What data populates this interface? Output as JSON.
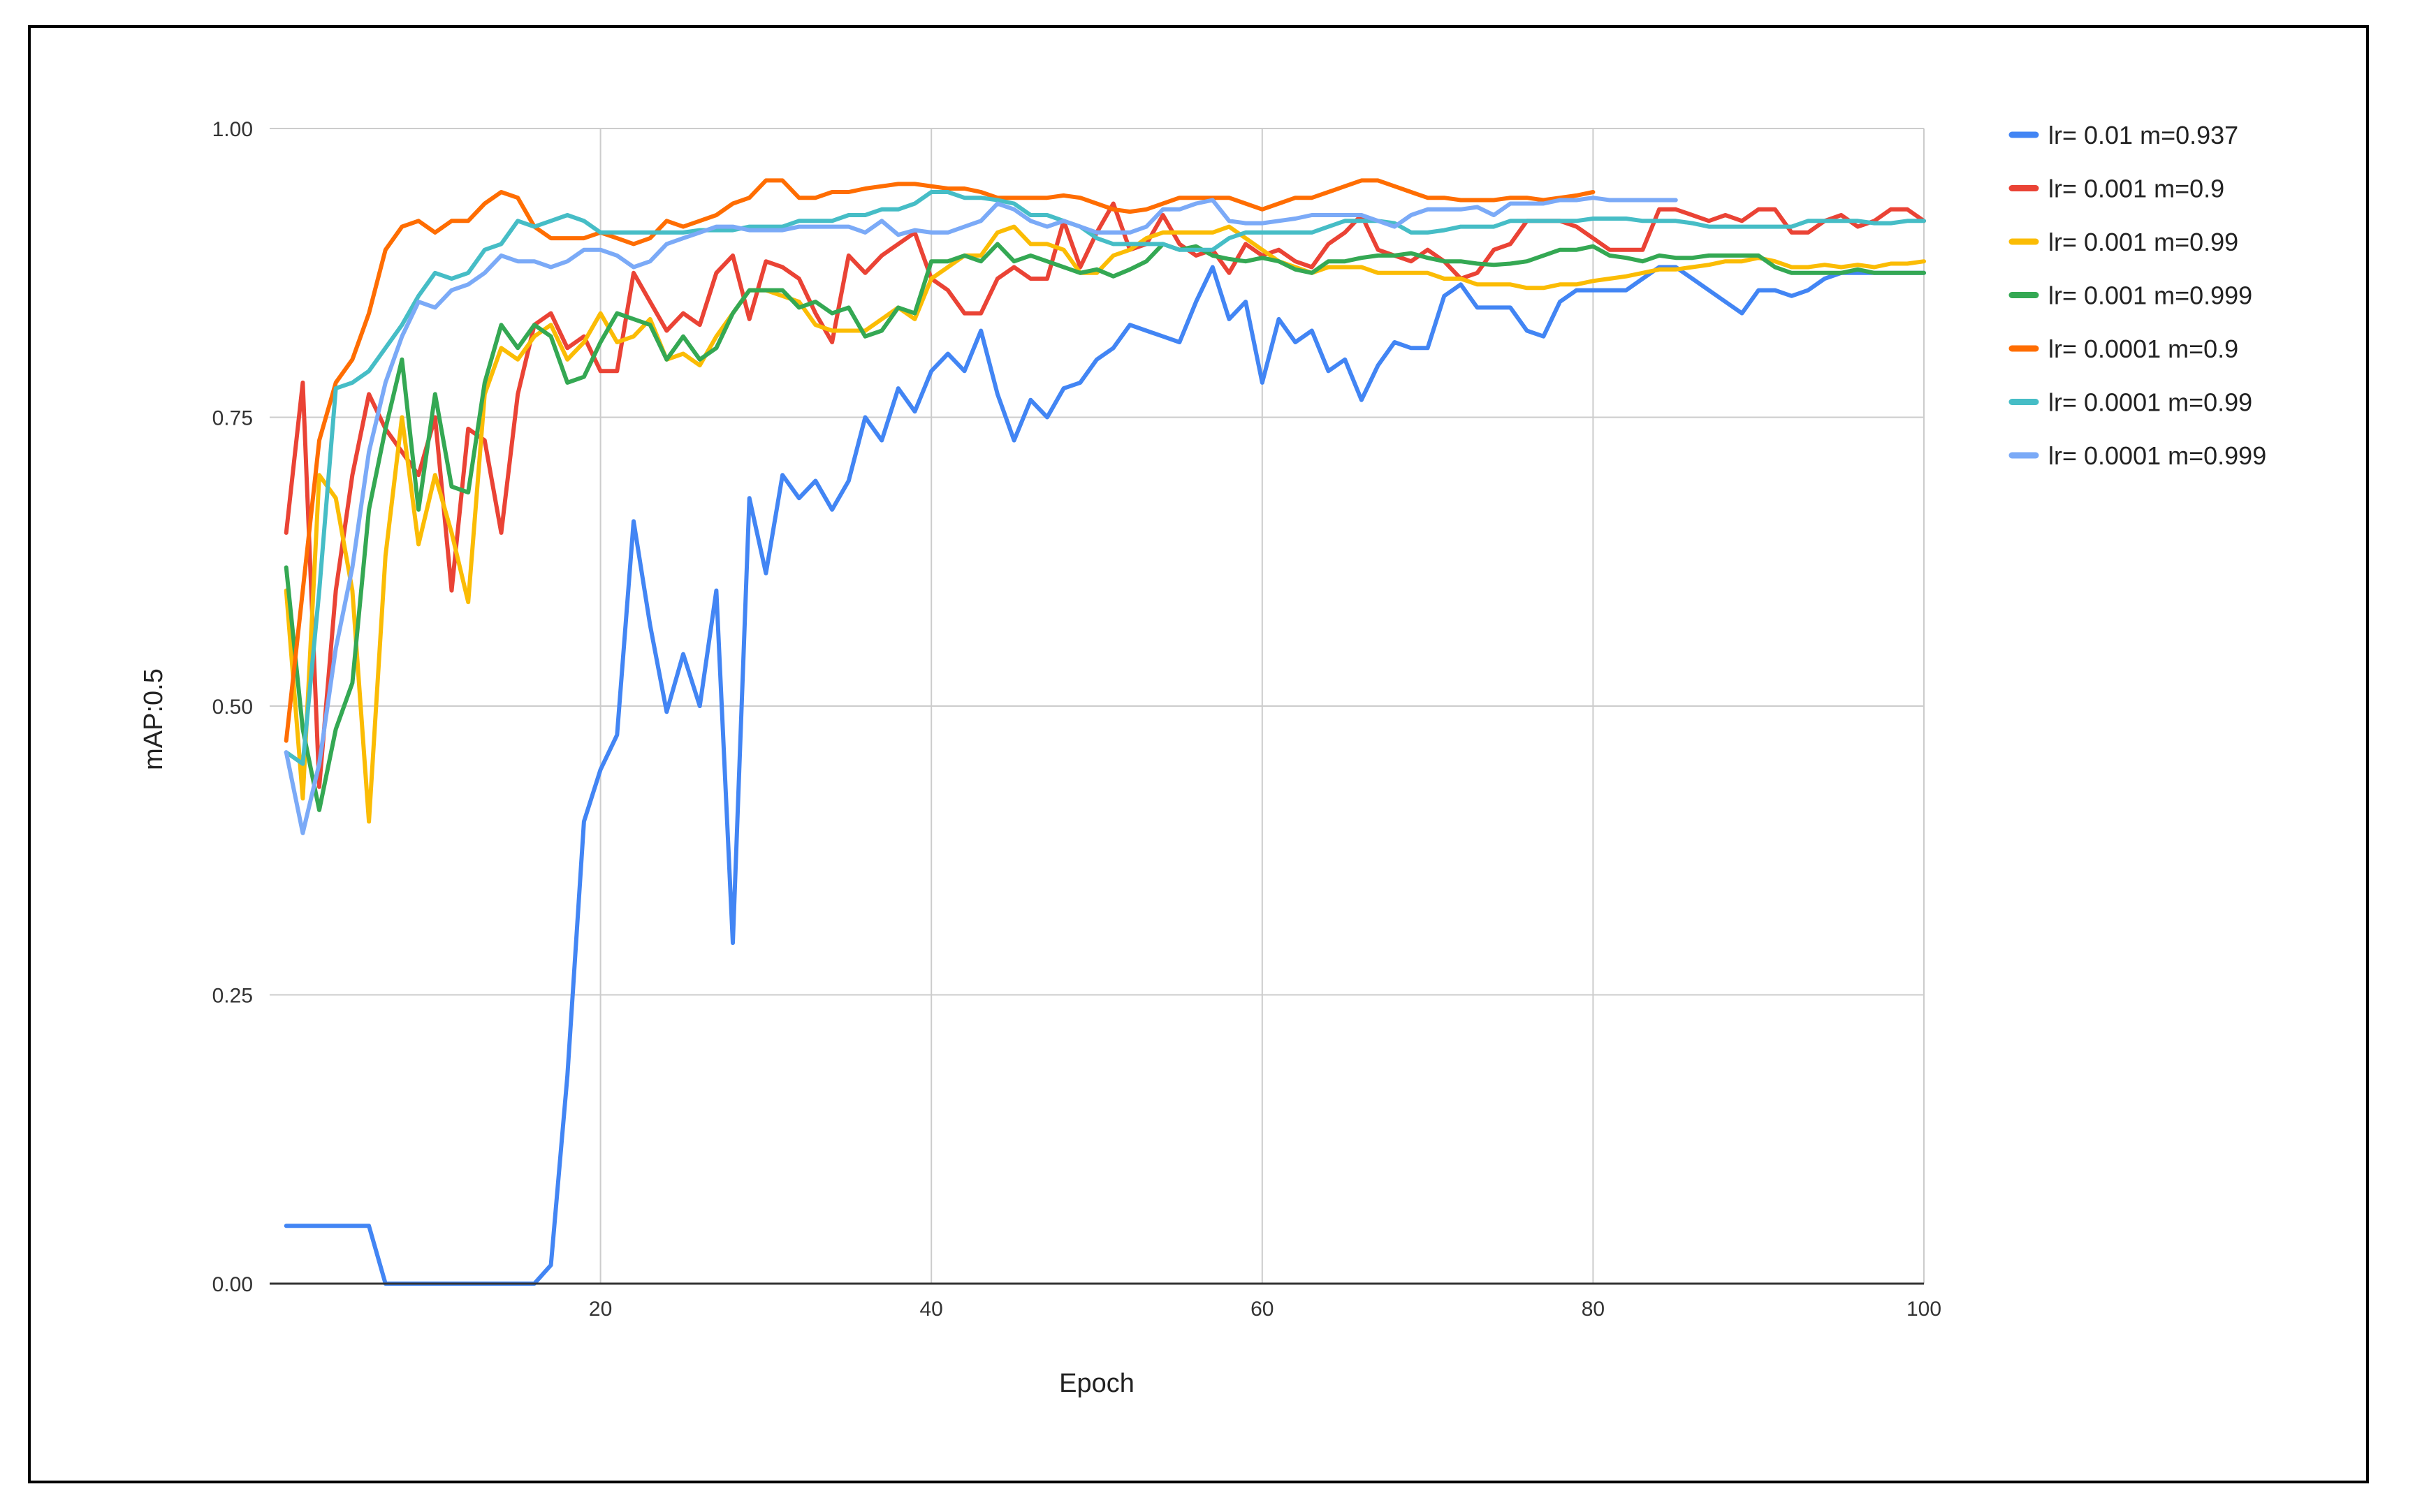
{
  "chart_data": {
    "type": "line",
    "title": "",
    "xlabel": "Epoch",
    "ylabel": "mAP:0.5",
    "xlim": [
      0,
      100
    ],
    "ylim": [
      0,
      1
    ],
    "x_ticks": [
      "20",
      "40",
      "60",
      "80",
      "100"
    ],
    "y_ticks": [
      "0.00",
      "0.25",
      "0.50",
      "0.75",
      "1.00"
    ],
    "grid": true,
    "legend_position": "right",
    "series": [
      {
        "name": "lr= 0.01 m=0.937",
        "color": "#4285f4",
        "start": 1,
        "values": [
          0.05,
          0.05,
          0.05,
          0.05,
          0.05,
          0.05,
          0,
          0,
          0,
          0,
          0,
          0,
          0,
          0,
          0,
          0,
          0.016,
          0.18,
          0.4,
          0.445,
          0.475,
          0.66,
          0.57,
          0.495,
          0.545,
          0.5,
          0.6,
          0.295,
          0.68,
          0.615,
          0.7,
          0.68,
          0.695,
          0.67,
          0.695,
          0.75,
          0.73,
          0.775,
          0.755,
          0.79,
          0.805,
          0.79,
          0.825,
          0.77,
          0.73,
          0.765,
          0.75,
          0.775,
          0.78,
          0.8,
          0.81,
          0.83,
          0.825,
          0.82,
          0.815,
          0.85,
          0.88,
          0.835,
          0.85,
          0.78,
          0.835,
          0.815,
          0.825,
          0.79,
          0.8,
          0.765,
          0.795,
          0.815,
          0.81,
          0.81,
          0.855,
          0.865,
          0.845,
          0.845,
          0.845,
          0.825,
          0.82,
          0.85,
          0.86,
          0.86,
          0.86,
          0.86,
          0.87,
          0.88,
          0.88,
          0.87,
          0.86,
          0.85,
          0.84,
          0.86,
          0.86,
          0.855,
          0.86,
          0.87,
          0.875,
          0.875,
          0.875,
          0.875,
          0.875,
          0.875
        ]
      },
      {
        "name": "lr= 0.001 m=0.9",
        "color": "#ea4335",
        "start": 1,
        "values": [
          0.65,
          0.78,
          0.43,
          0.6,
          0.7,
          0.77,
          0.74,
          0.72,
          0.7,
          0.75,
          0.6,
          0.74,
          0.73,
          0.65,
          0.77,
          0.83,
          0.84,
          0.81,
          0.82,
          0.79,
          0.79,
          0.875,
          0.85,
          0.825,
          0.84,
          0.83,
          0.875,
          0.89,
          0.835,
          0.885,
          0.88,
          0.87,
          0.84,
          0.815,
          0.89,
          0.875,
          0.89,
          0.9,
          0.91,
          0.87,
          0.86,
          0.84,
          0.84,
          0.87,
          0.88,
          0.87,
          0.87,
          0.92,
          0.88,
          0.91,
          0.935,
          0.895,
          0.9,
          0.925,
          0.9,
          0.89,
          0.895,
          0.875,
          0.9,
          0.89,
          0.895,
          0.885,
          0.88,
          0.9,
          0.91,
          0.925,
          0.895,
          0.89,
          0.885,
          0.895,
          0.885,
          0.87,
          0.875,
          0.895,
          0.9,
          0.92,
          0.92,
          0.92,
          0.915,
          0.905,
          0.895,
          0.895,
          0.895,
          0.93,
          0.93,
          0.925,
          0.92,
          0.925,
          0.92,
          0.93,
          0.93,
          0.91,
          0.91,
          0.92,
          0.925,
          0.915,
          0.92,
          0.93,
          0.93,
          0.92
        ]
      },
      {
        "name": "lr= 0.001 m=0.99",
        "color": "#fbbc04",
        "start": 1,
        "values": [
          0.6,
          0.42,
          0.7,
          0.68,
          0.6,
          0.4,
          0.63,
          0.75,
          0.64,
          0.7,
          0.65,
          0.59,
          0.77,
          0.81,
          0.8,
          0.82,
          0.83,
          0.8,
          0.815,
          0.84,
          0.815,
          0.82,
          0.835,
          0.8,
          0.805,
          0.795,
          0.82,
          0.84,
          0.86,
          0.86,
          0.855,
          0.85,
          0.83,
          0.825,
          0.825,
          0.825,
          0.835,
          0.845,
          0.835,
          0.87,
          0.88,
          0.89,
          0.89,
          0.91,
          0.915,
          0.9,
          0.9,
          0.895,
          0.875,
          0.875,
          0.89,
          0.895,
          0.905,
          0.91,
          0.91,
          0.91,
          0.91,
          0.915,
          0.905,
          0.895,
          0.885,
          0.88,
          0.875,
          0.88,
          0.88,
          0.88,
          0.875,
          0.875,
          0.875,
          0.875,
          0.87,
          0.87,
          0.865,
          0.865,
          0.865,
          0.862,
          0.862,
          0.865,
          0.865,
          0.868,
          0.87,
          0.872,
          0.875,
          0.878,
          0.878,
          0.88,
          0.882,
          0.885,
          0.885,
          0.888,
          0.885,
          0.88,
          0.88,
          0.882,
          0.88,
          0.882,
          0.88,
          0.883,
          0.883,
          0.885
        ]
      },
      {
        "name": "lr= 0.001 m=0.999",
        "color": "#34a853",
        "start": 1,
        "values": [
          0.62,
          0.48,
          0.41,
          0.48,
          0.52,
          0.67,
          0.74,
          0.8,
          0.67,
          0.77,
          0.69,
          0.685,
          0.78,
          0.83,
          0.81,
          0.83,
          0.82,
          0.78,
          0.785,
          0.815,
          0.84,
          0.835,
          0.83,
          0.8,
          0.82,
          0.8,
          0.81,
          0.84,
          0.86,
          0.86,
          0.86,
          0.845,
          0.85,
          0.84,
          0.845,
          0.82,
          0.825,
          0.845,
          0.84,
          0.885,
          0.885,
          0.89,
          0.885,
          0.9,
          0.885,
          0.89,
          0.885,
          0.88,
          0.875,
          0.878,
          0.872,
          0.878,
          0.885,
          0.9,
          0.895,
          0.898,
          0.89,
          0.887,
          0.885,
          0.888,
          0.885,
          0.878,
          0.875,
          0.885,
          0.885,
          0.888,
          0.89,
          0.89,
          0.892,
          0.888,
          0.885,
          0.885,
          0.883,
          0.882,
          0.883,
          0.885,
          0.89,
          0.895,
          0.895,
          0.898,
          0.89,
          0.888,
          0.885,
          0.89,
          0.888,
          0.888,
          0.89,
          0.89,
          0.89,
          0.89,
          0.88,
          0.875,
          0.875,
          0.875,
          0.875,
          0.878,
          0.875,
          0.875,
          0.875,
          0.875
        ]
      },
      {
        "name": "lr= 0.0001 m=0.9",
        "color": "#ff6d01",
        "start": 1,
        "values": [
          0.47,
          0.6,
          0.73,
          0.78,
          0.8,
          0.84,
          0.895,
          0.915,
          0.92,
          0.91,
          0.92,
          0.92,
          0.935,
          0.945,
          0.94,
          0.915,
          0.905,
          0.905,
          0.905,
          0.91,
          0.905,
          0.9,
          0.905,
          0.92,
          0.915,
          0.92,
          0.925,
          0.935,
          0.94,
          0.955,
          0.955,
          0.94,
          0.94,
          0.945,
          0.945,
          0.948,
          0.95,
          0.952,
          0.952,
          0.95,
          0.948,
          0.948,
          0.945,
          0.94,
          0.94,
          0.94,
          0.94,
          0.942,
          0.94,
          0.935,
          0.93,
          0.928,
          0.93,
          0.935,
          0.94,
          0.94,
          0.94,
          0.94,
          0.935,
          0.93,
          0.935,
          0.94,
          0.94,
          0.945,
          0.95,
          0.955,
          0.955,
          0.95,
          0.945,
          0.94,
          0.94,
          0.938,
          0.938,
          0.938,
          0.94,
          0.94,
          0.938,
          0.94,
          0.942,
          0.945
        ]
      },
      {
        "name": "lr= 0.0001 m=0.99",
        "color": "#46bdc6",
        "start": 1,
        "values": [
          0.46,
          0.45,
          0.6,
          0.775,
          0.78,
          0.79,
          0.81,
          0.83,
          0.855,
          0.875,
          0.87,
          0.875,
          0.895,
          0.9,
          0.92,
          0.915,
          0.92,
          0.925,
          0.92,
          0.91,
          0.91,
          0.91,
          0.91,
          0.91,
          0.91,
          0.912,
          0.912,
          0.912,
          0.915,
          0.915,
          0.915,
          0.92,
          0.92,
          0.92,
          0.925,
          0.925,
          0.93,
          0.93,
          0.935,
          0.945,
          0.945,
          0.94,
          0.94,
          0.938,
          0.935,
          0.925,
          0.925,
          0.92,
          0.915,
          0.905,
          0.9,
          0.9,
          0.9,
          0.9,
          0.895,
          0.895,
          0.895,
          0.905,
          0.91,
          0.91,
          0.91,
          0.91,
          0.91,
          0.915,
          0.92,
          0.92,
          0.92,
          0.918,
          0.91,
          0.91,
          0.912,
          0.915,
          0.915,
          0.915,
          0.92,
          0.92,
          0.92,
          0.92,
          0.92,
          0.922,
          0.922,
          0.922,
          0.92,
          0.92,
          0.92,
          0.918,
          0.915,
          0.915,
          0.915,
          0.915,
          0.915,
          0.915,
          0.92,
          0.92,
          0.92,
          0.92,
          0.918,
          0.918,
          0.92,
          0.92
        ]
      },
      {
        "name": "lr= 0.0001 m=0.999",
        "color": "#7baaf7",
        "start": 1,
        "values": [
          0.46,
          0.39,
          0.45,
          0.55,
          0.62,
          0.72,
          0.78,
          0.82,
          0.85,
          0.845,
          0.86,
          0.865,
          0.875,
          0.89,
          0.885,
          0.885,
          0.88,
          0.885,
          0.895,
          0.895,
          0.89,
          0.88,
          0.885,
          0.9,
          0.905,
          0.91,
          0.915,
          0.915,
          0.912,
          0.912,
          0.912,
          0.915,
          0.915,
          0.915,
          0.915,
          0.91,
          0.92,
          0.908,
          0.912,
          0.91,
          0.91,
          0.915,
          0.92,
          0.935,
          0.93,
          0.92,
          0.915,
          0.92,
          0.915,
          0.91,
          0.91,
          0.91,
          0.915,
          0.93,
          0.93,
          0.935,
          0.938,
          0.92,
          0.918,
          0.918,
          0.92,
          0.922,
          0.925,
          0.925,
          0.925,
          0.925,
          0.92,
          0.915,
          0.925,
          0.93,
          0.93,
          0.93,
          0.932,
          0.925,
          0.935,
          0.935,
          0.935,
          0.938,
          0.938,
          0.94,
          0.938,
          0.938,
          0.938,
          0.938,
          0.938
        ]
      }
    ]
  }
}
